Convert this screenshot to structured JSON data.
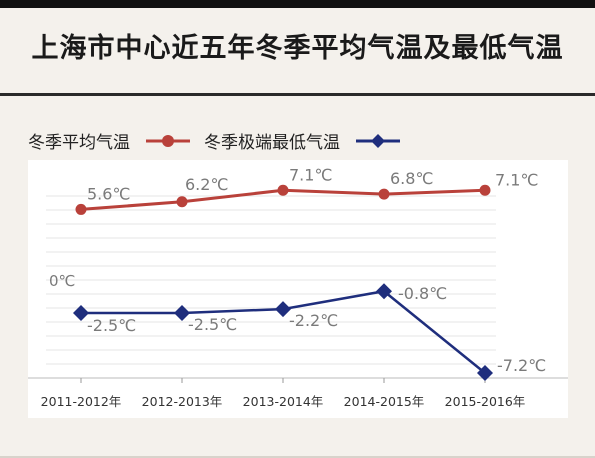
{
  "title": "上海市中心近五年冬季平均气温及最低气温",
  "colors": {
    "avg": "#b9413a",
    "min": "#1f2e7d",
    "grid": "#e6e6e6",
    "label": "#7a7a7a",
    "tick": "#333333"
  },
  "chart_data": {
    "type": "line",
    "categories": [
      "2011-2012年",
      "2012-2013年",
      "2013-2014年",
      "2014-2015年",
      "2015-2016年"
    ],
    "series": [
      {
        "name": "冬季平均气温",
        "marker": "circle",
        "values": [
          5.6,
          6.2,
          7.1,
          6.8,
          7.1
        ],
        "labels": [
          "5.6℃",
          "6.2℃",
          "7.1℃",
          "6.8℃",
          "7.1℃"
        ]
      },
      {
        "name": "冬季极端最低气温",
        "marker": "diamond",
        "values": [
          -2.5,
          -2.5,
          -2.2,
          -0.8,
          -7.2
        ],
        "labels": [
          "-2.5℃",
          "-2.5℃",
          "-2.2℃",
          "-0.8℃",
          "-7.2℃"
        ]
      }
    ],
    "zero_label": "0℃",
    "ylim": [
      -8,
      8
    ],
    "grid": true
  }
}
